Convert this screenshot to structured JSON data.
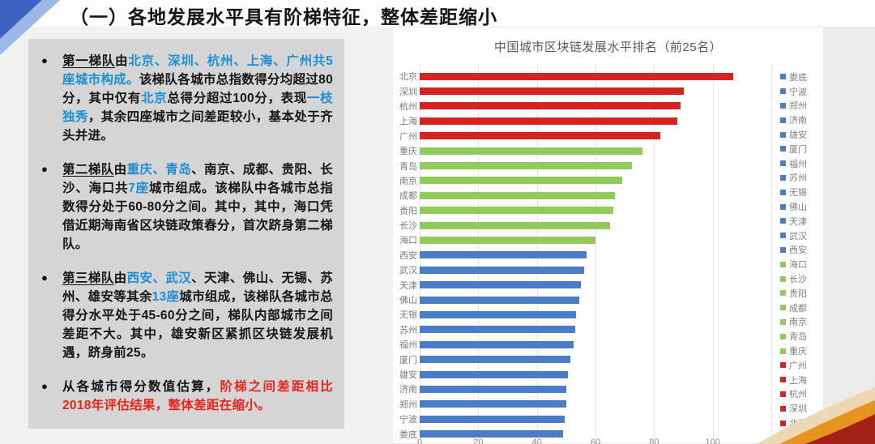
{
  "slide": {
    "title": "（一）各地发展水平具有阶梯特征，整体差距缩小"
  },
  "panel": {
    "bullets": [
      {
        "segments": [
          {
            "t": "第一梯队",
            "s": "underline"
          },
          {
            "t": "由",
            "s": "plain"
          },
          {
            "t": "北京、深圳、杭州、上海、广州共5座城市构成。",
            "s": "blue"
          },
          {
            "t": "该梯队各城市总指数得分均超过80分，其中仅有",
            "s": "plain"
          },
          {
            "t": "北京",
            "s": "blue"
          },
          {
            "t": "总得分超过100分，表现",
            "s": "plain"
          },
          {
            "t": "一枝独秀",
            "s": "blue"
          },
          {
            "t": "，其余",
            "s": "plain"
          },
          {
            "t": "四座城市",
            "s": "bold"
          },
          {
            "t": "之间差距较小，基本处于",
            "s": "plain"
          },
          {
            "t": "齐头并进。",
            "s": "bold"
          }
        ]
      },
      {
        "segments": [
          {
            "t": "第二梯队",
            "s": "underline"
          },
          {
            "t": "由",
            "s": "plain"
          },
          {
            "t": "重庆、青岛",
            "s": "blue"
          },
          {
            "t": "、南京、成都、贵阳、长沙、海口共",
            "s": "plain"
          },
          {
            "t": "7座",
            "s": "blue"
          },
          {
            "t": "城市组成。该梯队中各城市总指数得分处于60-80分之间。其中，",
            "s": "plain"
          },
          {
            "t": "其中，海口凭借近期海南省区块链政策春分，首次跻身第二梯队。",
            "s": "bold"
          }
        ]
      },
      {
        "segments": [
          {
            "t": "第三梯队",
            "s": "underline"
          },
          {
            "t": "由",
            "s": "plain"
          },
          {
            "t": "西安、武汉",
            "s": "blue"
          },
          {
            "t": "、天津、佛山、无锡、苏州、雄安等其余",
            "s": "plain"
          },
          {
            "t": "13座",
            "s": "blue"
          },
          {
            "t": "城市组成，该梯队各城市总得分水平处于45-60分之间，",
            "s": "plain"
          },
          {
            "t": "梯队内部城市之间差距不大。其中，雄安新区紧抓区块链发展机遇，跻身前25。",
            "s": "bold"
          }
        ]
      },
      {
        "segments": [
          {
            "t": "从各城市得分数值估算，",
            "s": "plain"
          },
          {
            "t": "阶梯之间差距相比2018年评估结果，整体差距在缩小。",
            "s": "red"
          }
        ]
      }
    ]
  },
  "chart_data": {
    "type": "bar",
    "orientation": "horizontal",
    "title": "中国城市区块链发展水平排名（前25名）",
    "xlabel": "",
    "ylabel": "",
    "xlim": [
      0,
      120
    ],
    "xticks": [
      0,
      20,
      40,
      60,
      80,
      100,
      120
    ],
    "grid": true,
    "legend_position": "right",
    "legend_order": "reversed-of-bars",
    "tier_colors": {
      "tier1_red": "#d6231f",
      "tier2_green": "#90cb5b",
      "tier3_blue": "#4a7cc7"
    },
    "bars": [
      {
        "city": "北京",
        "value": 107,
        "color": "#d6231f"
      },
      {
        "city": "深圳",
        "value": 90,
        "color": "#d6231f"
      },
      {
        "city": "杭州",
        "value": 89,
        "color": "#d6231f"
      },
      {
        "city": "上海",
        "value": 88,
        "color": "#d6231f"
      },
      {
        "city": "广州",
        "value": 82,
        "color": "#d6231f"
      },
      {
        "city": "重庆",
        "value": 76,
        "color": "#90cb5b"
      },
      {
        "city": "青岛",
        "value": 72.5,
        "color": "#90cb5b"
      },
      {
        "city": "南京",
        "value": 69,
        "color": "#90cb5b"
      },
      {
        "city": "成都",
        "value": 66.5,
        "color": "#90cb5b"
      },
      {
        "city": "贵阳",
        "value": 66,
        "color": "#90cb5b"
      },
      {
        "city": "长沙",
        "value": 65,
        "color": "#90cb5b"
      },
      {
        "city": "海口",
        "value": 60,
        "color": "#90cb5b"
      },
      {
        "city": "西安",
        "value": 57,
        "color": "#4a7cc7"
      },
      {
        "city": "武汉",
        "value": 56,
        "color": "#4a7cc7"
      },
      {
        "city": "天津",
        "value": 55,
        "color": "#4a7cc7"
      },
      {
        "city": "佛山",
        "value": 54.5,
        "color": "#4a7cc7"
      },
      {
        "city": "无锡",
        "value": 53.5,
        "color": "#4a7cc7"
      },
      {
        "city": "苏州",
        "value": 53,
        "color": "#4a7cc7"
      },
      {
        "city": "福州",
        "value": 52.5,
        "color": "#4a7cc7"
      },
      {
        "city": "厦门",
        "value": 51.5,
        "color": "#4a7cc7"
      },
      {
        "city": "雄安",
        "value": 50.5,
        "color": "#4a7cc7"
      },
      {
        "city": "济南",
        "value": 50,
        "color": "#4a7cc7"
      },
      {
        "city": "郑州",
        "value": 50,
        "color": "#4a7cc7"
      },
      {
        "city": "宁波",
        "value": 49.5,
        "color": "#4a7cc7"
      },
      {
        "city": "娄底",
        "value": 49,
        "color": "#4a7cc7"
      }
    ]
  },
  "decorations": {
    "corner_top_left": {
      "dark_blue": "#3c63c2",
      "light_blue": "#9cb8e8"
    },
    "corner_bottom_right": {
      "cream": "#ecd9b4",
      "orange": "#e6931f",
      "dark_red": "#a32015"
    }
  }
}
